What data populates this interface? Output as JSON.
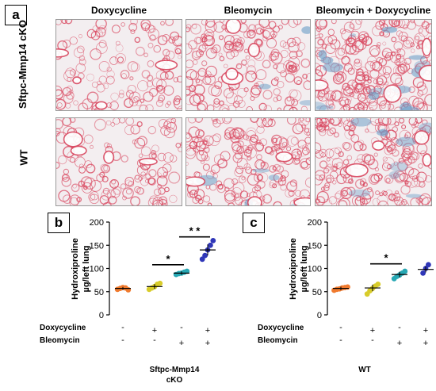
{
  "figure": {
    "panel_labels": {
      "a": "a",
      "b": "b",
      "c": "c"
    },
    "column_titles": [
      "Doxycycline",
      "Bleomycin",
      "Bleomycin + Doxycycline"
    ],
    "row_labels": [
      "Sftpc-Mmp14 cKO",
      "WT"
    ],
    "micrograph_colors": {
      "background": "#f3eef0",
      "tissue": "#d9475f",
      "collagen": "#6fa0c8"
    }
  },
  "chart_data": [
    {
      "type": "scatter",
      "panel": "b",
      "ylabel_lines": [
        "Hydroxiproline",
        "µg/left lung"
      ],
      "ylim": [
        0,
        200
      ],
      "yticks": [
        "0",
        "50",
        "100",
        "150",
        "200"
      ],
      "row_labels": [
        "Doxycycline",
        "Bleomycin"
      ],
      "group_signs": [
        [
          "-",
          "+",
          "-",
          "+"
        ],
        [
          "-",
          "-",
          "+",
          "+"
        ]
      ],
      "caption_lines": [
        "Sftpc-Mmp14",
        "cKO"
      ],
      "groups": [
        {
          "color": "#f07a2e",
          "mean": 57,
          "points": [
            55,
            57,
            59,
            58,
            54
          ]
        },
        {
          "color": "#d8cc2a",
          "mean": 61,
          "points": [
            55,
            58,
            61,
            66,
            68
          ]
        },
        {
          "color": "#27a8b4",
          "mean": 90,
          "points": [
            87,
            89,
            90,
            92,
            94
          ]
        },
        {
          "color": "#2f36b8",
          "mean": 140,
          "points": [
            120,
            128,
            140,
            150,
            160
          ]
        }
      ],
      "significance": [
        {
          "from": 1,
          "to": 2,
          "y": 108,
          "label": "*"
        },
        {
          "from": 2,
          "to": 3,
          "y": 168,
          "label": "* *"
        }
      ]
    },
    {
      "type": "scatter",
      "panel": "c",
      "ylabel_lines": [
        "Hydroxiproline",
        "µg/left lung"
      ],
      "ylim": [
        0,
        200
      ],
      "yticks": [
        "0",
        "50",
        "100",
        "150",
        "200"
      ],
      "row_labels": [
        "Doxycycline",
        "Bleomycin"
      ],
      "group_signs": [
        [
          "-",
          "+",
          "-",
          "+"
        ],
        [
          "-",
          "-",
          "+",
          "+"
        ]
      ],
      "caption_lines": [
        "WT"
      ],
      "groups": [
        {
          "color": "#f07a2e",
          "mean": 57,
          "points": [
            53,
            55,
            56,
            58,
            59,
            60
          ]
        },
        {
          "color": "#d8cc2a",
          "mean": 58,
          "points": [
            45,
            52,
            57,
            62,
            66
          ]
        },
        {
          "color": "#27a8b4",
          "mean": 87,
          "points": [
            78,
            83,
            86,
            90,
            94
          ]
        },
        {
          "color": "#2f36b8",
          "mean": 98,
          "points": [
            90,
            100,
            108
          ]
        }
      ],
      "significance": [
        {
          "from": 1,
          "to": 2,
          "y": 110,
          "label": "*"
        }
      ]
    }
  ]
}
